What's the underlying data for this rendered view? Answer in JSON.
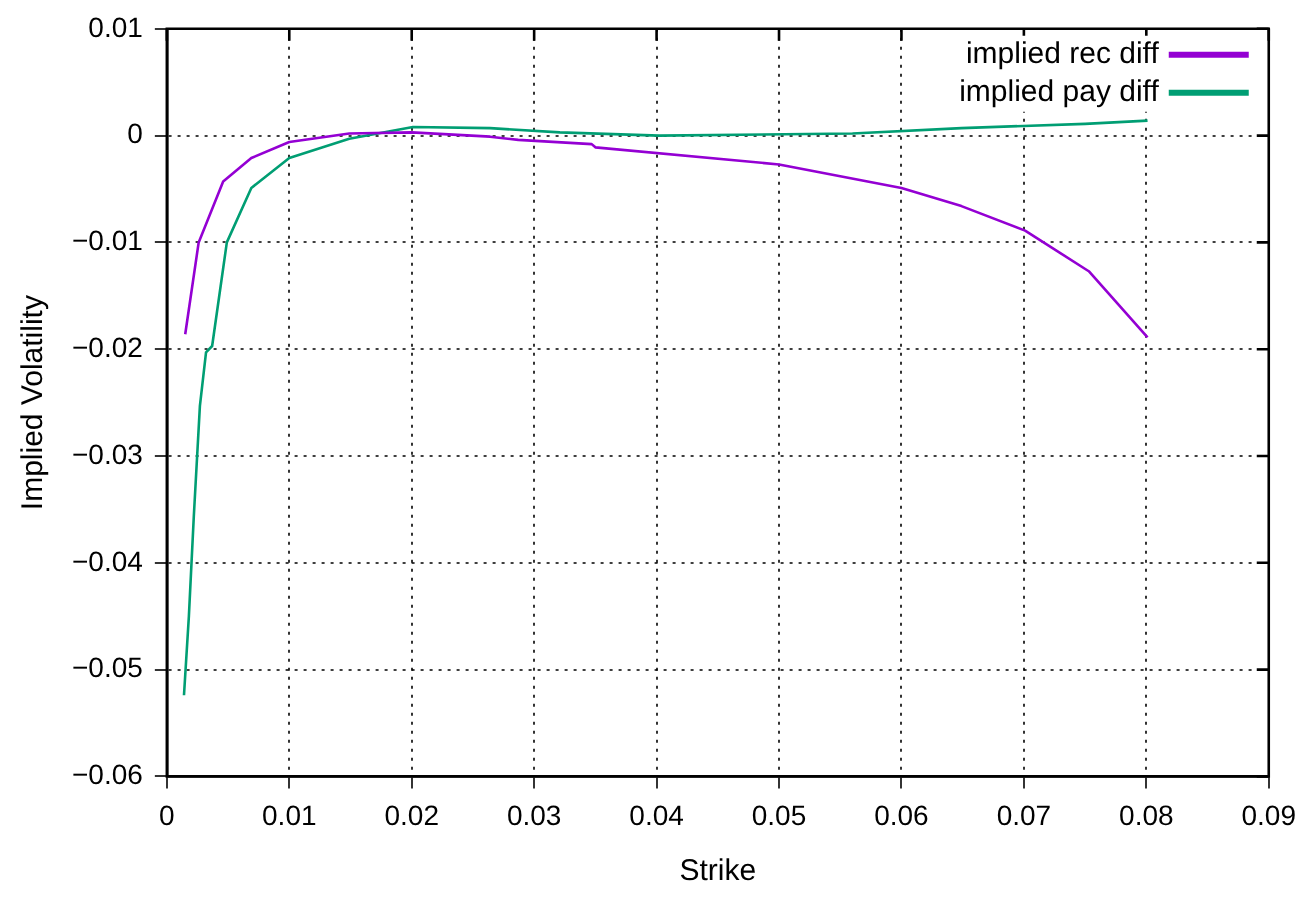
{
  "chart_data": {
    "type": "line",
    "xlabel": "Strike",
    "ylabel": "Implied Volatility",
    "xlim": [
      0,
      0.09
    ],
    "xticks": [
      0,
      0.01,
      0.02,
      0.03,
      0.04,
      0.05,
      0.06,
      0.07,
      0.08,
      0.09
    ],
    "ylim": [
      -0.06,
      0.01
    ],
    "yticks": [
      {
        "value": -0.06,
        "label": "−0.06"
      },
      {
        "value": -0.05,
        "label": "−0.05"
      },
      {
        "value": -0.04,
        "label": "−0.04"
      },
      {
        "value": -0.03,
        "label": "−0.03"
      },
      {
        "value": -0.02,
        "label": "−0.02"
      },
      {
        "value": -0.01,
        "label": "−0.01"
      },
      0,
      0.01
    ],
    "grid": true,
    "legend": "top right",
    "marker": "none",
    "line_style": "solid",
    "series": [
      {
        "name": "implied rec diff",
        "color": "#9400d3",
        "x": [
          0.0015,
          0.0026,
          0.0046,
          0.0069,
          0.01,
          0.0149,
          0.02,
          0.0264,
          0.0287,
          0.0347,
          0.035,
          0.05,
          0.06,
          0.0649,
          0.0701,
          0.0753,
          0.0801
        ],
        "values": [
          -0.0186,
          -0.01,
          -0.0043,
          -0.0021,
          -0.0006,
          0.0002,
          0.0003,
          -0.0001,
          -0.0004,
          -0.0008,
          -0.0011,
          -0.0027,
          -0.0049,
          -0.0066,
          -0.0089,
          -0.0127,
          -0.0189
        ]
      },
      {
        "name": "implied pay diff",
        "color": "#009e73",
        "x": [
          0.0014,
          0.0018,
          0.0022,
          0.0027,
          0.0032,
          0.0037,
          0.0049,
          0.0069,
          0.01,
          0.0149,
          0.0201,
          0.0264,
          0.0321,
          0.0402,
          0.056,
          0.0649,
          0.075,
          0.0801
        ],
        "values": [
          -0.0524,
          -0.045,
          -0.0357,
          -0.0253,
          -0.0203,
          -0.0197,
          -0.01,
          -0.0049,
          -0.0021,
          -0.0003,
          0.0008,
          0.0007,
          0.0003,
          0,
          0.0002,
          0.0007,
          0.0011,
          0.0014
        ]
      }
    ]
  }
}
